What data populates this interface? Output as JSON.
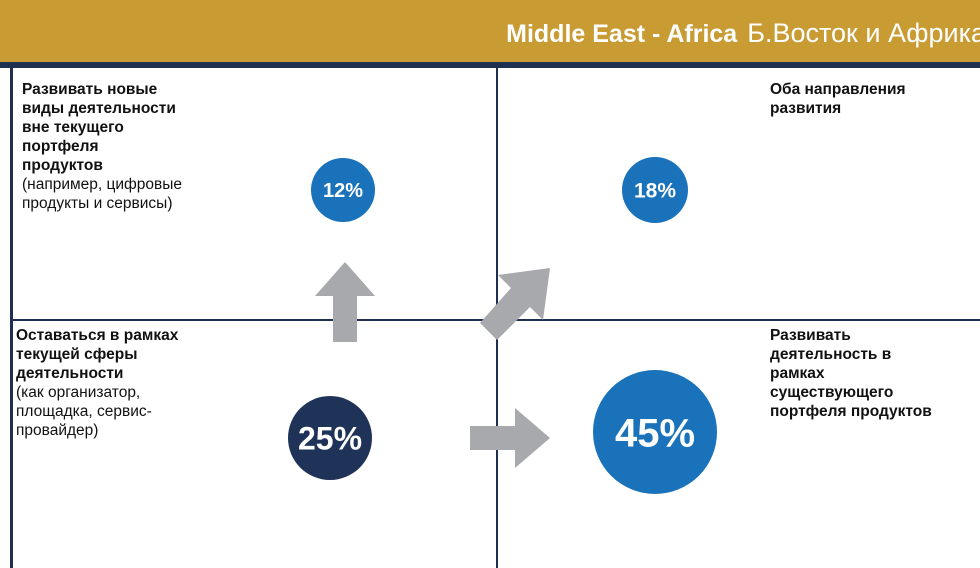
{
  "header": {
    "title_en": "Middle East - Africa",
    "title_ru": "Б.Восток и Африка"
  },
  "quadrants": [
    {
      "heading": [
        "Развивать новые",
        "виды деятельности",
        "вне текущего",
        "портфеля",
        "продуктов"
      ],
      "note": [
        "(например, цифровые",
        "продукты и сервисы)"
      ],
      "percent": "12%"
    },
    {
      "heading": [
        "Оба направления",
        "развития"
      ],
      "note": [],
      "percent": "18%"
    },
    {
      "heading": [
        "Оставаться в рамках",
        "текущей сферы",
        "деятельности"
      ],
      "note": [
        "(как организатор,",
        "площадка, сервис-",
        "провайдер)"
      ],
      "percent": "25%"
    },
    {
      "heading": [
        "Развивать",
        "деятельность в",
        "рамках",
        "существующего",
        "портфеля продуктов"
      ],
      "note": [],
      "percent": "45%"
    }
  ]
}
